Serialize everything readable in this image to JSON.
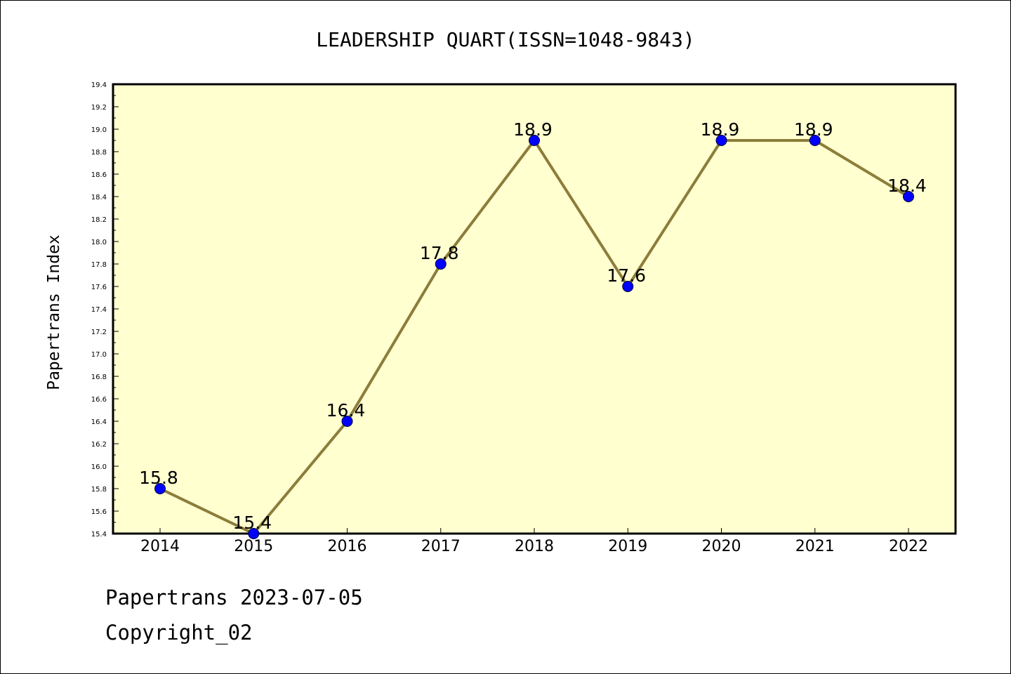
{
  "footer": {
    "line1": "Papertrans 2023-07-05",
    "line2": "Copyright_02"
  },
  "chart_data": {
    "type": "line",
    "title": "LEADERSHIP QUART(ISSN=1048-9843)",
    "xlabel": "",
    "ylabel": "Papertrans Index",
    "categories": [
      "2014",
      "2015",
      "2016",
      "2017",
      "2018",
      "2019",
      "2020",
      "2021",
      "2022"
    ],
    "values": [
      15.8,
      15.4,
      16.4,
      17.8,
      18.9,
      17.6,
      18.9,
      18.9,
      18.4
    ],
    "data_labels": [
      "15.8",
      "15.4",
      "16.4",
      "17.8",
      "18.9",
      "17.6",
      "18.9",
      "18.9",
      "18.4"
    ],
    "ylim": [
      15.4,
      19.4
    ],
    "yticks": [
      "15.4",
      "15.6",
      "15.8",
      "16.0",
      "16.2",
      "16.4",
      "16.6",
      "16.8",
      "17.0",
      "17.2",
      "17.4",
      "17.6",
      "17.8",
      "18.0",
      "18.2",
      "18.4",
      "18.6",
      "18.8",
      "19.0",
      "19.2",
      "19.4"
    ],
    "colors": {
      "plot_background": "#ffffd0",
      "line": "#8b7d3a",
      "marker": "#0000ff"
    },
    "grid": false,
    "legend": "none"
  }
}
